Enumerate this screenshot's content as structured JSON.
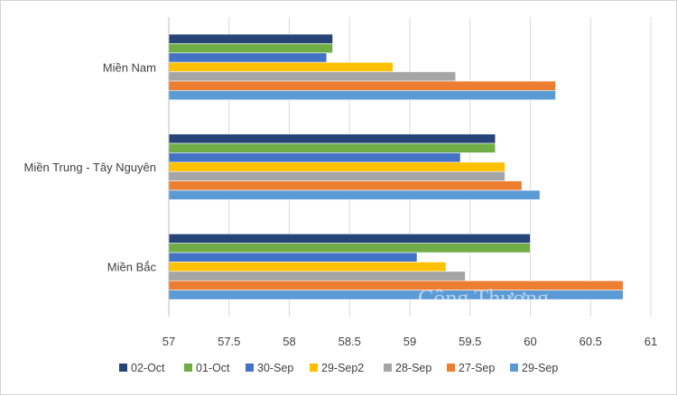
{
  "chart_data": {
    "type": "bar",
    "orientation": "horizontal",
    "title": "",
    "xlabel": "",
    "ylabel": "",
    "xlim": [
      57,
      61
    ],
    "ticks": [
      "57",
      "57.5",
      "58",
      "58.5",
      "59",
      "59.5",
      "60",
      "60.5",
      "61"
    ],
    "tick_values": [
      57,
      57.5,
      58,
      58.5,
      59,
      59.5,
      60,
      60.5,
      61
    ],
    "grid": true,
    "legend_position": "bottom",
    "categories": [
      "Miền Nam",
      "Miền Trung - Tây Nguyên",
      "Miền Bắc"
    ],
    "series": [
      {
        "name": "02-Oct",
        "color": "#264478",
        "values": [
          58.36,
          59.71,
          60.0
        ]
      },
      {
        "name": "01-Oct",
        "color": "#70ad47",
        "values": [
          58.36,
          59.71,
          60.0
        ]
      },
      {
        "name": "30-Sep",
        "color": "#4472c4",
        "values": [
          58.31,
          59.42,
          59.06
        ]
      },
      {
        "name": "29-Sep2",
        "color": "#ffc000",
        "values": [
          58.86,
          59.79,
          59.3
        ]
      },
      {
        "name": "28-Sep",
        "color": "#a5a5a5",
        "values": [
          59.38,
          59.79,
          59.46
        ]
      },
      {
        "name": "27-Sep",
        "color": "#ed7d31",
        "values": [
          60.21,
          59.93,
          60.77
        ]
      },
      {
        "name": "29-Sep",
        "color": "#5b9bd5",
        "values": [
          60.21,
          60.08,
          60.77
        ]
      }
    ]
  },
  "watermark": "Công Thương"
}
